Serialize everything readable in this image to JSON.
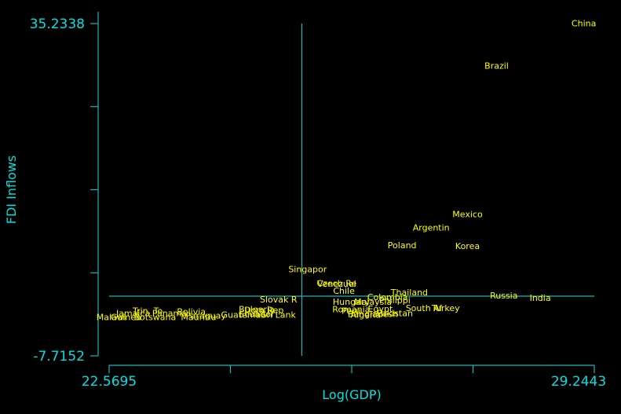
{
  "chart_data": {
    "type": "scatter",
    "title": "",
    "xlabel": "Log(GDP)",
    "ylabel": "FDI Inflows",
    "xlim": [
      22.5695,
      29.2443
    ],
    "ylim": [
      -7.7152,
      35.2338
    ],
    "x_tick_labels": [
      "22.5695",
      "29.2443"
    ],
    "y_tick_labels": [
      "35.2338",
      "-7.7152"
    ],
    "x_minor_ticks": [
      24.2382,
      25.9069,
      27.5756
    ],
    "y_minor_ticks": [
      24.5,
      13.76,
      3.02
    ],
    "reference_lines": {
      "x": 25.22,
      "y": 0.0
    },
    "marker": "label-only",
    "label_color": "#ffff00",
    "axis_color": "#00e0e0",
    "points": [
      {
        "label": "China",
        "x": 29.1,
        "y": 35.2
      },
      {
        "label": "Brazil",
        "x": 27.9,
        "y": 29.7
      },
      {
        "label": "Mexico",
        "x": 27.5,
        "y": 10.5
      },
      {
        "label": "Argentin",
        "x": 27.0,
        "y": 8.8
      },
      {
        "label": "Poland",
        "x": 26.6,
        "y": 6.5
      },
      {
        "label": "Korea",
        "x": 27.5,
        "y": 6.4
      },
      {
        "label": "Singapor",
        "x": 25.3,
        "y": 3.4
      },
      {
        "label": "Czech Re",
        "x": 25.7,
        "y": 1.6
      },
      {
        "label": "Venezuel",
        "x": 25.7,
        "y": 1.5
      },
      {
        "label": "Chile",
        "x": 25.8,
        "y": 0.6
      },
      {
        "label": "Thailand",
        "x": 26.7,
        "y": 0.4
      },
      {
        "label": "Russia",
        "x": 28.0,
        "y": 0.0
      },
      {
        "label": "India",
        "x": 28.5,
        "y": -0.3
      },
      {
        "label": "Colombia",
        "x": 26.4,
        "y": -0.2
      },
      {
        "label": "Philippi",
        "x": 26.5,
        "y": -0.6
      },
      {
        "label": "Slovak R",
        "x": 24.9,
        "y": -0.5
      },
      {
        "label": "Hungary",
        "x": 25.9,
        "y": -0.8
      },
      {
        "label": "Malaysia",
        "x": 26.2,
        "y": -0.8
      },
      {
        "label": "South Af",
        "x": 26.9,
        "y": -1.6
      },
      {
        "label": "Turkey",
        "x": 27.2,
        "y": -1.6
      },
      {
        "label": "Romania",
        "x": 25.9,
        "y": -1.8
      },
      {
        "label": "Egypt",
        "x": 26.3,
        "y": -1.7
      },
      {
        "label": "Peru",
        "x": 25.9,
        "y": -2.0
      },
      {
        "label": "Bulgaria",
        "x": 24.6,
        "y": -1.8
      },
      {
        "label": "Dom Rep",
        "x": 24.7,
        "y": -1.9
      },
      {
        "label": "Algeria",
        "x": 26.1,
        "y": -2.5
      },
      {
        "label": "Bangladesh",
        "x": 26.2,
        "y": -2.4
      },
      {
        "label": "Pakistan",
        "x": 26.5,
        "y": -2.3
      },
      {
        "label": "Sri Lank",
        "x": 24.9,
        "y": -2.5
      },
      {
        "label": "Ecuador",
        "x": 24.6,
        "y": -2.4
      },
      {
        "label": "Guatemal",
        "x": 24.4,
        "y": -2.5
      },
      {
        "label": "Trin. To",
        "x": 23.1,
        "y": -2.0
      },
      {
        "label": "Panama",
        "x": 23.4,
        "y": -2.3
      },
      {
        "label": "Bolivia",
        "x": 23.7,
        "y": -2.1
      },
      {
        "label": "Jamaica",
        "x": 22.9,
        "y": -2.3
      },
      {
        "label": "Paraguay",
        "x": 23.9,
        "y": -2.6
      },
      {
        "label": "Mauritiu",
        "x": 23.8,
        "y": -2.8
      },
      {
        "label": "Guinea",
        "x": 22.8,
        "y": -2.8
      },
      {
        "label": "Malawi",
        "x": 22.6,
        "y": -2.8
      },
      {
        "label": "Botswana",
        "x": 23.2,
        "y": -2.8
      }
    ]
  }
}
